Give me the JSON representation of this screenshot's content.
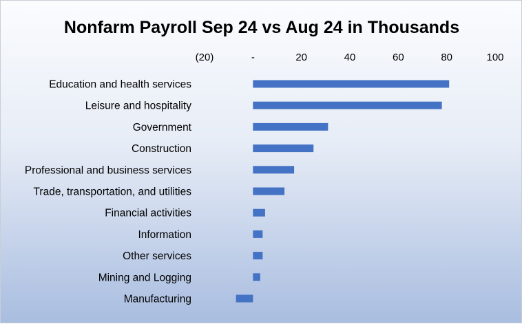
{
  "chart_data": {
    "type": "bar",
    "orientation": "horizontal",
    "title": "Nonfarm Payroll Sep 24 vs Aug 24 in Thousands",
    "xlim": [
      -20,
      100
    ],
    "tick_values": [
      -20,
      0,
      20,
      40,
      60,
      80,
      100
    ],
    "tick_labels": [
      "(20)",
      "-",
      "20",
      "40",
      "60",
      "80",
      "100"
    ],
    "axis_position": "top",
    "grid": false,
    "bar_color": "#4472c4",
    "categories": [
      "Education and health services",
      "Leisure and hospitality",
      "Government",
      "Construction",
      "Professional and business services",
      "Trade, transportation, and utilities",
      "Financial activities",
      "Information",
      "Other services",
      "Mining and Logging",
      "Manufacturing"
    ],
    "values": [
      81,
      78,
      31,
      25,
      17,
      13,
      5,
      4,
      4,
      3,
      -7
    ]
  }
}
